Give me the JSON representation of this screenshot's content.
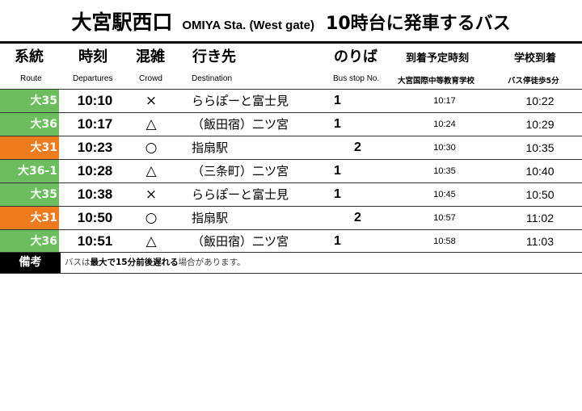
{
  "title": {
    "station": "大宮駅西口",
    "english": "OMIYA Sta. (West gate)",
    "subtitle": "10時台に発車するバス"
  },
  "headers": {
    "route": {
      "ja": "系統",
      "en": "Route"
    },
    "departures": {
      "ja": "時刻",
      "en": "Departures"
    },
    "crowd": {
      "ja": "混雑",
      "en": "Crowd"
    },
    "destination": {
      "ja": "行き先",
      "en": "Destination"
    },
    "stop": {
      "ja": "のりば",
      "en": "Bus stop No."
    },
    "arrival": {
      "ja": "到着予定時刻",
      "en": "大宮国際中等教育学校"
    },
    "school": {
      "ja": "学校到着",
      "en": "バス停徒歩5分"
    }
  },
  "colors": {
    "green": "#6cbd5e",
    "orange": "#ef7b1f"
  },
  "rows": [
    {
      "route": "大35",
      "color": "green",
      "dep": "10:10",
      "crowd": "×",
      "dest": "ららぽーと富士見",
      "stop": "1",
      "arr": "10:17",
      "school": "10:22"
    },
    {
      "route": "大36",
      "color": "green",
      "dep": "10:17",
      "crowd": "△",
      "dest": "（飯田宿）二ツ宮",
      "stop": "1",
      "arr": "10:24",
      "school": "10:29"
    },
    {
      "route": "大31",
      "color": "orange",
      "dep": "10:23",
      "crowd": "○",
      "dest": "指扇駅",
      "stop": "2",
      "arr": "10:30",
      "school": "10:35"
    },
    {
      "route": "大36-1",
      "color": "green",
      "dep": "10:28",
      "crowd": "△",
      "dest": "（三条町）二ツ宮",
      "stop": "1",
      "arr": "10:35",
      "school": "10:40"
    },
    {
      "route": "大35",
      "color": "green",
      "dep": "10:38",
      "crowd": "×",
      "dest": "ららぽーと富士見",
      "stop": "1",
      "arr": "10:45",
      "school": "10:50"
    },
    {
      "route": "大31",
      "color": "orange",
      "dep": "10:50",
      "crowd": "○",
      "dest": "指扇駅",
      "stop": "2",
      "arr": "10:57",
      "school": "11:02"
    },
    {
      "route": "大36",
      "color": "green",
      "dep": "10:51",
      "crowd": "△",
      "dest": "（飯田宿）二ツ宮",
      "stop": "1",
      "arr": "10:58",
      "school": "11:03"
    }
  ],
  "note": {
    "label": "備考",
    "parts": [
      {
        "text": "バスは",
        "bold": false
      },
      {
        "text": "最大で15分前後遅れる",
        "bold": true
      },
      {
        "text": "場合があります。",
        "bold": false
      }
    ]
  }
}
